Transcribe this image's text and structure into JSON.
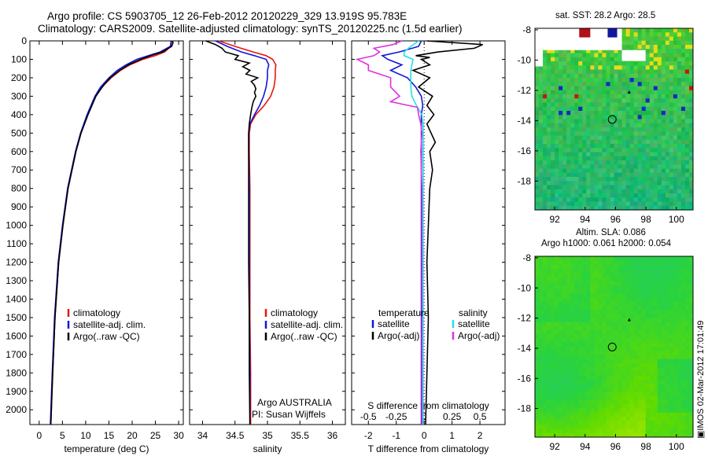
{
  "header": {
    "line1": "Argo profile: CS 5903705_12 26-Feb-2012 20120229_329 13.919S 95.783E",
    "line2": "Climatology: CARS2009. Satellite-adjusted climatology: synTS_20120225.nc (1.5d earlier)"
  },
  "map_sst": {
    "title": "sat. SST: 28.2 Argo: 28.5"
  },
  "map_sla": {
    "title1": "Altim. SLA: 0.086",
    "title2": "Argo h1000: 0.061 h2000: 0.054"
  },
  "stamp": "IMOS 02-Mar-2012 17:01:49",
  "colors": {
    "climatology": "#e8160c",
    "satellite": "#1018d8",
    "argo": "#000000",
    "satellite_s": "#22e0e8",
    "argo_s": "#e030e0"
  },
  "chart_data": [
    {
      "type": "line",
      "name": "temperature panel",
      "xlabel": "temperature (deg C)",
      "ylabel": "",
      "xlim": [
        -2,
        31
      ],
      "ylim": [
        2080,
        0
      ],
      "xticks": [
        "0",
        "5",
        "10",
        "15",
        "20",
        "25",
        "30"
      ],
      "yticks": [
        "0",
        "100",
        "200",
        "300",
        "400",
        "500",
        "600",
        "700",
        "800",
        "900",
        "1000",
        "1100",
        "1200",
        "1300",
        "1400",
        "1500",
        "1600",
        "1700",
        "1800",
        "1900",
        "2000"
      ],
      "legend": [
        "climatology",
        "satellite-adj. clim.",
        "Argo(..raw -QC)"
      ],
      "series": [
        {
          "name": "climatology",
          "color": "#e8160c",
          "depth": [
            0,
            30,
            60,
            80,
            100,
            130,
            160,
            200,
            250,
            300,
            400,
            500,
            600,
            800,
            1000,
            1200,
            1500,
            1800,
            2080
          ],
          "values": [
            28.5,
            28.3,
            27.0,
            25.0,
            22.3,
            19.5,
            17.5,
            15.5,
            13.5,
            12.1,
            10.4,
            9.0,
            7.9,
            6.2,
            5.1,
            4.2,
            3.4,
            2.9,
            2.5
          ]
        },
        {
          "name": "satellite-adj. clim.",
          "color": "#1018d8",
          "depth": [
            0,
            30,
            60,
            80,
            100,
            130,
            160,
            200,
            250,
            300,
            400,
            500,
            600,
            800,
            1000,
            1200,
            1500,
            1800,
            2080
          ],
          "values": [
            28.4,
            28.2,
            26.0,
            23.5,
            21.0,
            18.7,
            16.8,
            15.0,
            13.2,
            12.0,
            10.3,
            8.9,
            7.8,
            6.1,
            5.0,
            4.1,
            3.3,
            2.8,
            2.4
          ]
        },
        {
          "name": "Argo(..raw -QC)",
          "color": "#000000",
          "depth": [
            0,
            10,
            30,
            60,
            80,
            100,
            130,
            160,
            200,
            230,
            260,
            300,
            400,
            500,
            600,
            800,
            1000,
            1200,
            1500,
            1800,
            2080
          ],
          "values": [
            28.6,
            28.8,
            28.5,
            26.5,
            24.0,
            21.8,
            19.2,
            17.3,
            15.3,
            14.2,
            13.3,
            12.2,
            10.5,
            9.0,
            7.9,
            6.2,
            5.1,
            4.2,
            3.4,
            2.9,
            2.5
          ]
        }
      ]
    },
    {
      "type": "line",
      "name": "salinity panel",
      "xlabel": "salinity",
      "xlim": [
        33.8,
        36.2
      ],
      "ylim": [
        2080,
        0
      ],
      "xticks": [
        "34",
        "34.5",
        "35",
        "35.5",
        "36"
      ],
      "legend": [
        "climatology",
        "satellite-adj. clim.",
        "Argo(..raw -QC)"
      ],
      "annotation": [
        "Argo AUSTRALIA",
        "PI: Susan Wijffels"
      ],
      "series": [
        {
          "name": "climatology",
          "color": "#e8160c",
          "depth": [
            0,
            30,
            60,
            80,
            100,
            130,
            160,
            200,
            250,
            300,
            350,
            400,
            450,
            500,
            600,
            800,
            1000,
            1200,
            1500,
            1800,
            2080
          ],
          "values": [
            34.25,
            34.5,
            34.78,
            34.98,
            35.08,
            35.13,
            35.12,
            35.12,
            35.1,
            35.05,
            34.95,
            34.82,
            34.74,
            34.72,
            34.72,
            34.73,
            34.73,
            34.73,
            34.73,
            34.74,
            34.74
          ]
        },
        {
          "name": "satellite-adj. clim.",
          "color": "#1018d8",
          "depth": [
            0,
            30,
            60,
            80,
            100,
            130,
            160,
            200,
            250,
            300,
            350,
            400,
            450,
            500,
            600,
            800,
            1000,
            1200,
            1500,
            1800,
            2080
          ],
          "values": [
            34.2,
            34.38,
            34.6,
            34.8,
            34.98,
            35.02,
            35.0,
            35.0,
            34.98,
            34.94,
            34.88,
            34.8,
            34.73,
            34.71,
            34.71,
            34.72,
            34.72,
            34.72,
            34.72,
            34.73,
            34.73
          ]
        },
        {
          "name": "Argo(..raw -QC)",
          "color": "#000000",
          "depth": [
            0,
            20,
            40,
            60,
            80,
            100,
            120,
            140,
            160,
            180,
            200,
            220,
            240,
            260,
            280,
            300,
            330,
            360,
            400,
            450,
            500,
            600,
            800,
            1000,
            1200,
            1500,
            1800,
            2080
          ],
          "values": [
            34.05,
            34.2,
            34.3,
            34.35,
            34.55,
            34.5,
            34.72,
            34.62,
            34.73,
            34.67,
            34.85,
            34.75,
            34.8,
            34.82,
            34.8,
            34.82,
            34.78,
            34.76,
            34.74,
            34.72,
            34.71,
            34.71,
            34.71,
            34.71,
            34.71,
            34.72,
            34.72,
            34.73
          ]
        }
      ]
    },
    {
      "type": "line",
      "name": "difference panel",
      "xlabel": "T difference from climatology",
      "xlabel_top": "S difference from climatology",
      "xlim": [
        -2.6,
        2.9
      ],
      "ylim": [
        2080,
        0
      ],
      "xticks": [
        "-2",
        "-1",
        "0",
        "1",
        "2"
      ],
      "xticks_top": [
        "-0.5",
        "-0.25",
        "0",
        "0.25",
        "0.5"
      ],
      "legend_titles": [
        "temperature",
        "salinity"
      ],
      "legend": [
        "satellite",
        "Argo(-adj)",
        "satellite",
        "Argo(-adj)"
      ],
      "series": [
        {
          "name": "temperature satellite",
          "color": "#1018d8",
          "depth": [
            0,
            30,
            60,
            80,
            100,
            130,
            160,
            200,
            250,
            300,
            350,
            400,
            450,
            500,
            600,
            800,
            1000,
            1200,
            1500,
            1800,
            2080
          ],
          "values": [
            -0.1,
            -0.2,
            -0.9,
            -1.5,
            -1.3,
            -0.8,
            -1.2,
            -0.6,
            -0.3,
            -0.1,
            -0.05,
            -0.1,
            -0.1,
            -0.1,
            -0.1,
            -0.1,
            -0.1,
            -0.1,
            -0.1,
            -0.1,
            -0.1
          ]
        },
        {
          "name": "temperature Argo(-adj)",
          "color": "#000000",
          "depth": [
            0,
            20,
            40,
            60,
            80,
            90,
            100,
            130,
            160,
            200,
            250,
            300,
            350,
            400,
            450,
            500,
            550,
            600,
            700,
            800,
            1000,
            1200,
            1500,
            1800,
            2080
          ],
          "values": [
            0.1,
            2.1,
            1.8,
            0.5,
            -0.3,
            0.2,
            -0.1,
            0.2,
            -0.4,
            0.2,
            -0.2,
            0.3,
            0.1,
            0.35,
            0.1,
            0.25,
            0.4,
            0.2,
            0.3,
            0.2,
            0.15,
            0.1,
            0.15,
            0.1,
            0.05
          ]
        },
        {
          "name": "salinity satellite",
          "color": "#22e0e8",
          "depth": [
            0,
            30,
            60,
            80,
            100,
            130,
            160,
            200,
            250,
            300,
            350,
            400,
            450,
            500,
            600,
            800,
            1000,
            1200,
            1500,
            1800,
            2080
          ],
          "values": [
            -0.05,
            -0.12,
            -0.18,
            -0.18,
            -0.1,
            -0.11,
            -0.12,
            -0.12,
            -0.12,
            -0.11,
            -0.07,
            -0.02,
            -0.01,
            -0.01,
            -0.01,
            -0.01,
            -0.01,
            -0.01,
            -0.01,
            -0.01,
            -0.01
          ]
        },
        {
          "name": "salinity Argo(-adj)",
          "color": "#e030e0",
          "depth": [
            0,
            20,
            40,
            60,
            80,
            100,
            130,
            160,
            200,
            250,
            300,
            330,
            360,
            400,
            450,
            500,
            600,
            800,
            1000,
            1200,
            1500,
            1800,
            2080
          ],
          "values": [
            -0.2,
            -0.28,
            -0.45,
            -0.4,
            -0.45,
            -0.6,
            -0.5,
            -0.5,
            -0.3,
            -0.3,
            -0.22,
            -0.3,
            -0.06,
            -0.05,
            -0.03,
            -0.02,
            -0.03,
            -0.02,
            -0.02,
            -0.02,
            -0.02,
            -0.02,
            -0.02
          ]
        }
      ]
    },
    {
      "type": "heatmap",
      "name": "sst map",
      "xlim": [
        90.7,
        101.1
      ],
      "ylim": [
        -19.9,
        -7.9
      ],
      "xticks": [
        "92",
        "94",
        "96",
        "98",
        "100"
      ],
      "yticks": [
        "-8",
        "-10",
        "-12",
        "-14",
        "-16",
        "-18"
      ],
      "argo_position": [
        95.783,
        -13.919
      ]
    },
    {
      "type": "heatmap",
      "name": "sla map",
      "xlim": [
        90.7,
        101.1
      ],
      "ylim": [
        -19.9,
        -7.9
      ],
      "xticks": [
        "92",
        "94",
        "96",
        "98",
        "100"
      ],
      "yticks": [
        "-8",
        "-10",
        "-12",
        "-14",
        "-16",
        "-18"
      ],
      "argo_position": [
        95.783,
        -13.919
      ]
    }
  ]
}
